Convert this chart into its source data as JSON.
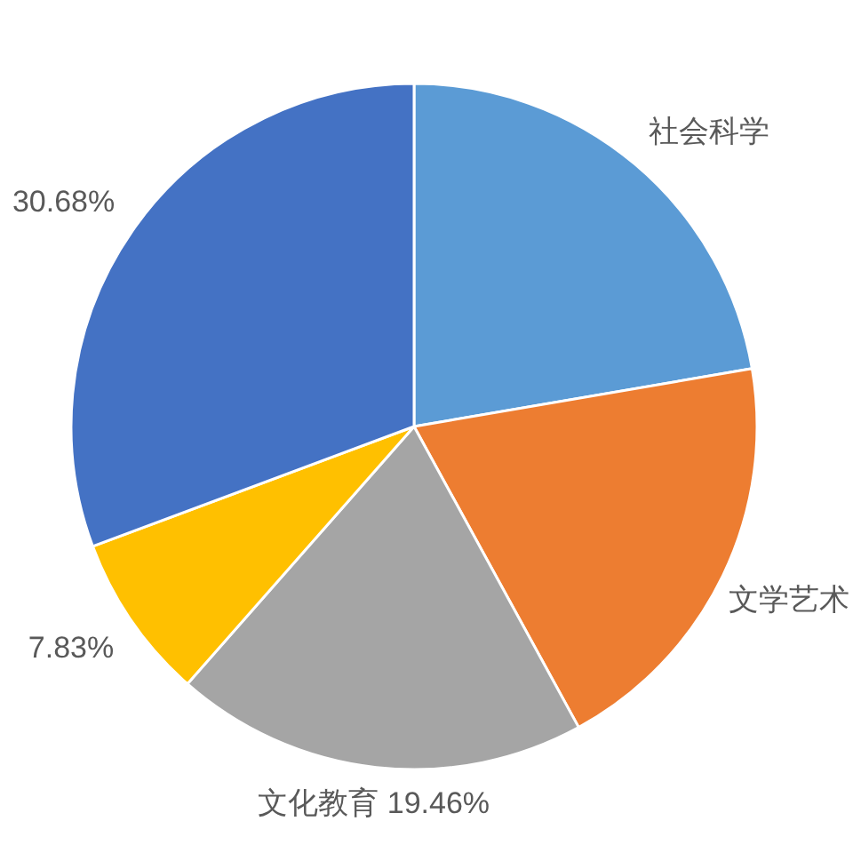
{
  "chart_data": {
    "type": "pie",
    "categories": [
      "社会科学",
      "文学艺术",
      "文化教育",
      null,
      null
    ],
    "values": [
      22.3,
      19.73,
      19.46,
      7.83,
      30.68
    ],
    "colors": [
      "#5b9bd5",
      "#ed7d31",
      "#a5a5a5",
      "#ffc000",
      "#4472c4"
    ],
    "value_labels": [
      null,
      null,
      "19.46%",
      "7.83%",
      "30.68%"
    ]
  }
}
